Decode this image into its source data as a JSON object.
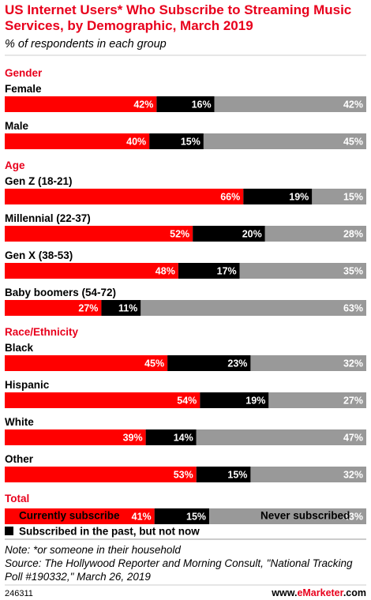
{
  "chart_data": {
    "type": "bar",
    "stacked": true,
    "orientation": "horizontal",
    "title": "US Internet Users* Who Subscribe to Streaming Music Services, by Demographic, March 2019",
    "subtitle": "% of respondents in each group",
    "unit": "%",
    "series": [
      {
        "name": "Currently subscribe",
        "color": "#ff0000"
      },
      {
        "name": "Subscribed in the past, but not now",
        "color": "#000000"
      },
      {
        "name": "Never subscribed",
        "color": "#999999"
      }
    ],
    "groups": [
      {
        "label": "Gender",
        "rows": [
          {
            "category": "Female",
            "values": [
              42,
              16,
              42
            ]
          },
          {
            "category": "Male",
            "values": [
              40,
              15,
              45
            ]
          }
        ]
      },
      {
        "label": "Age",
        "rows": [
          {
            "category": "Gen Z (18-21)",
            "values": [
              66,
              19,
              15
            ]
          },
          {
            "category": "Millennial (22-37)",
            "values": [
              52,
              20,
              28
            ]
          },
          {
            "category": "Gen X (38-53)",
            "values": [
              48,
              17,
              35
            ]
          },
          {
            "category": "Baby boomers (54-72)",
            "values": [
              27,
              11,
              63
            ]
          }
        ]
      },
      {
        "label": "Race/Ethnicity",
        "rows": [
          {
            "category": "Black",
            "values": [
              45,
              23,
              32
            ]
          },
          {
            "category": "Hispanic",
            "values": [
              54,
              19,
              27
            ]
          },
          {
            "category": "White",
            "values": [
              39,
              14,
              47
            ]
          },
          {
            "category": "Other",
            "values": [
              53,
              15,
              32
            ]
          }
        ]
      },
      {
        "label": "Total",
        "rows": [
          {
            "category": "",
            "values": [
              41,
              15,
              43
            ]
          }
        ]
      }
    ],
    "legend_position": "bottom"
  },
  "footer": {
    "note": "Note: *or someone in their household",
    "source_line1": "Source: The Hollywood Reporter and Morning Consult, \"National Tracking",
    "source_line2": "Poll #190332,\" March 26, 2019",
    "chart_id": "246311",
    "brand_prefix": "www.",
    "brand_name": "eMarketer",
    "brand_suffix": ".com"
  }
}
